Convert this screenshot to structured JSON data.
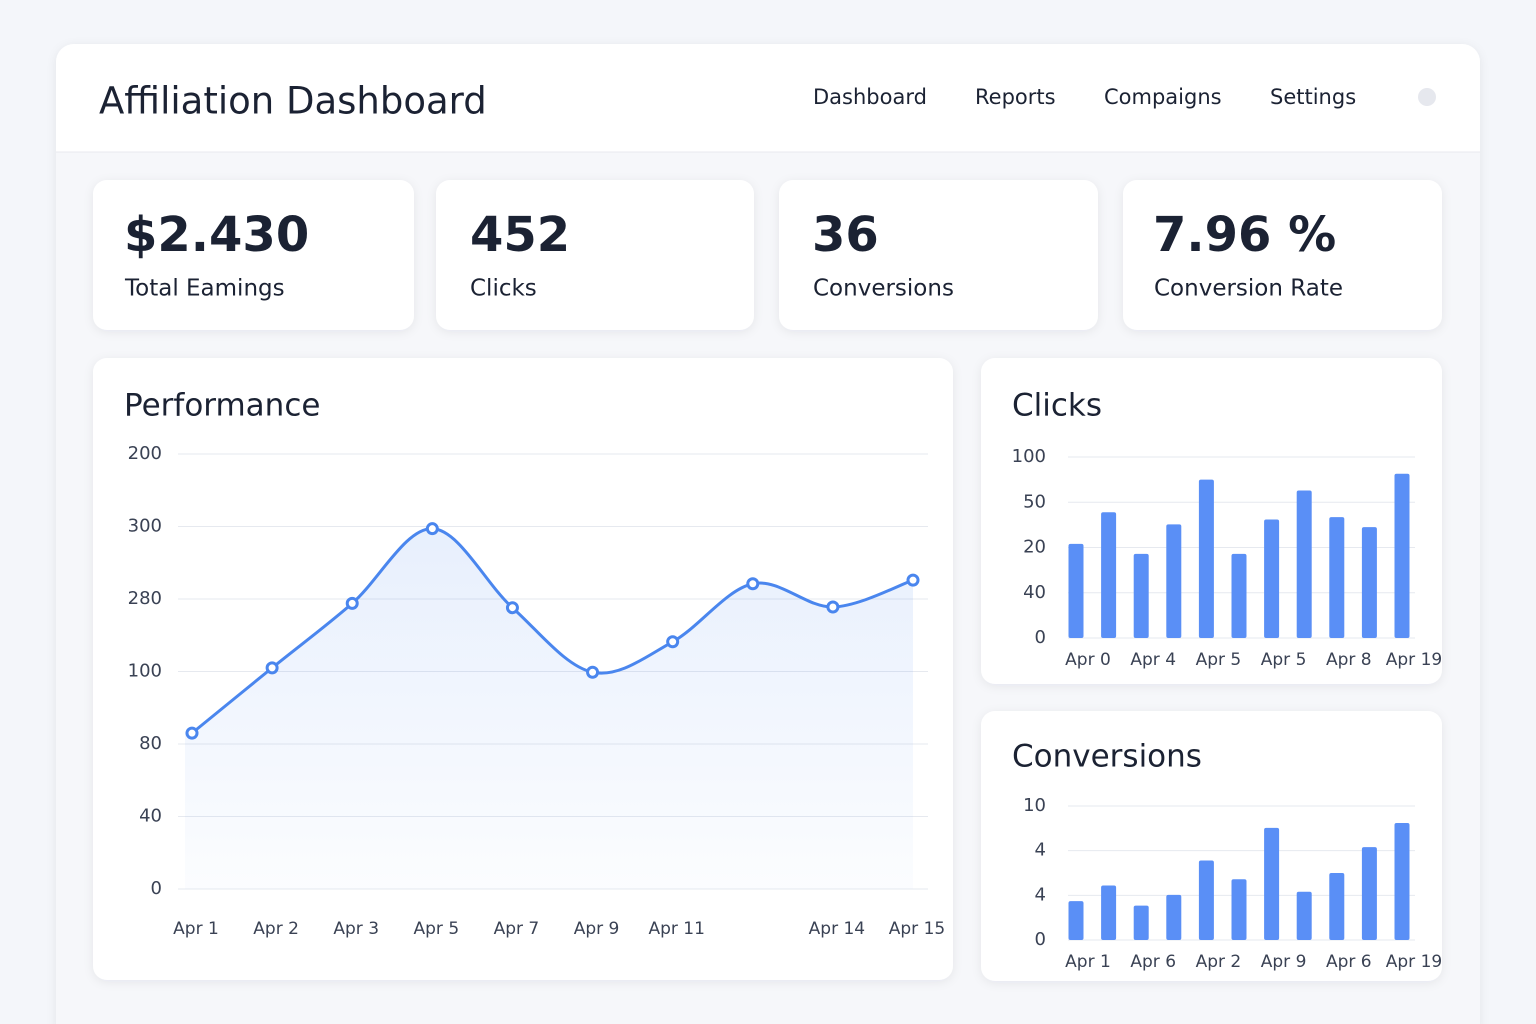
{
  "header": {
    "title": "Affiliation Dashboard",
    "nav": [
      "Dashboard",
      "Reports",
      "Compaigns",
      "Settings"
    ]
  },
  "stats": [
    {
      "value": "$2.430",
      "label": "Total Eamings"
    },
    {
      "value": "452",
      "label": "Clicks"
    },
    {
      "value": "36",
      "label": "Conversions"
    },
    {
      "value": "7.96 %",
      "label": "Conversion Rate"
    }
  ],
  "chart_data": [
    {
      "type": "line",
      "title": "Performance",
      "color": "#4a86ee",
      "grid": true,
      "categories": [
        "Apr 1",
        "Apr 2",
        "Apr 3",
        "Apr 5",
        "Apr 7",
        "Apr 9",
        "Apr 11",
        null,
        "Apr 14",
        "Apr 15"
      ],
      "values": [
        2.15,
        3.05,
        3.94,
        4.97,
        3.88,
        2.99,
        3.41,
        4.21,
        3.89,
        4.26
      ],
      "ylim": [
        0,
        6
      ],
      "yticks": [
        {
          "value": 0,
          "label": "0"
        },
        {
          "value": 1,
          "label": "40"
        },
        {
          "value": 2,
          "label": "80"
        },
        {
          "value": 3,
          "label": "100"
        },
        {
          "value": 4,
          "label": "280"
        },
        {
          "value": 5,
          "label": "300"
        },
        {
          "value": 6,
          "label": "200"
        }
      ]
    },
    {
      "type": "bar",
      "title": "Clicks",
      "color": "#5a8ff6",
      "grid": true,
      "categories": [
        "Apr 0",
        null,
        "Apr 4",
        null,
        "Apr 5",
        null,
        "Apr 5",
        null,
        "Apr 8",
        null,
        "Apr 19"
      ],
      "values": [
        2.08,
        2.78,
        1.86,
        2.51,
        3.5,
        1.86,
        2.62,
        3.26,
        2.67,
        2.45,
        3.63
      ],
      "ylim": [
        0,
        4
      ],
      "yticks": [
        {
          "value": 0,
          "label": "0"
        },
        {
          "value": 1,
          "label": "40"
        },
        {
          "value": 2,
          "label": "20"
        },
        {
          "value": 3,
          "label": "50"
        },
        {
          "value": 4,
          "label": "100"
        }
      ]
    },
    {
      "type": "bar",
      "title": "Conversions",
      "color": "#5a8ff6",
      "grid": true,
      "categories": [
        "Apr 1",
        null,
        "Apr 6",
        null,
        "Apr 2",
        null,
        "Apr 9",
        null,
        "Apr 6",
        null,
        "Apr 19"
      ],
      "values": [
        0.87,
        1.22,
        0.77,
        1.01,
        1.78,
        1.36,
        2.51,
        1.08,
        1.5,
        2.08,
        2.62
      ],
      "ylim": [
        0,
        3
      ],
      "yticks": [
        {
          "value": 0,
          "label": "0"
        },
        {
          "value": 1,
          "label": "4"
        },
        {
          "value": 2,
          "label": "4"
        },
        {
          "value": 3,
          "label": "10"
        }
      ]
    }
  ]
}
